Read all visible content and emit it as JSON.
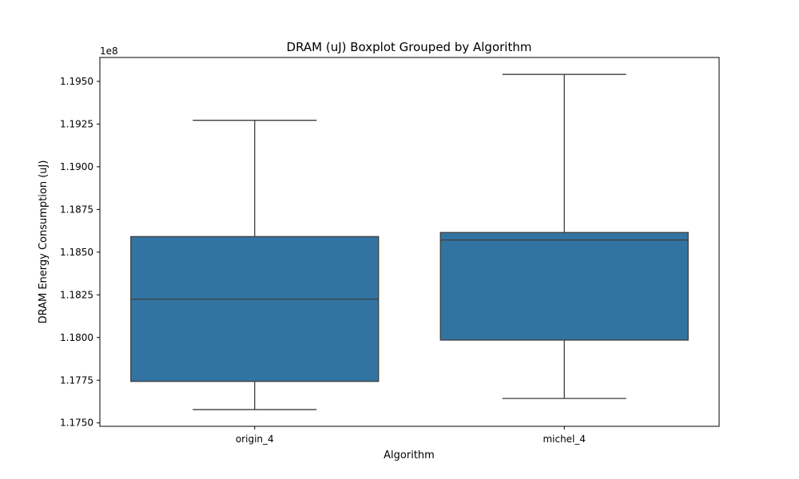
{
  "chart_data": {
    "type": "boxplot",
    "title": "DRAM (uJ) Boxplot Grouped by Algorithm",
    "xlabel": "Algorithm",
    "ylabel": "DRAM Energy Consumption (uJ)",
    "y_offset_label": "1e8",
    "ylim": [
      1.1748,
      1.1964
    ],
    "yticks": [
      1.175,
      1.1775,
      1.18,
      1.1825,
      1.185,
      1.1875,
      1.19,
      1.1925,
      1.195
    ],
    "ytick_labels": [
      "1.1750",
      "1.1775",
      "1.1800",
      "1.1825",
      "1.1850",
      "1.1875",
      "1.1900",
      "1.1925",
      "1.1950"
    ],
    "categories": [
      "origin_4",
      "michel_4"
    ],
    "boxes": [
      {
        "category": "origin_4",
        "whisker_low": 1.17578,
        "q1": 1.17743,
        "median": 1.18224,
        "q3": 1.18591,
        "whisker_high": 1.19272
      },
      {
        "category": "michel_4",
        "whisker_low": 1.17643,
        "q1": 1.17985,
        "median": 1.18571,
        "q3": 1.18615,
        "whisker_high": 1.19541
      }
    ],
    "box_color": "#3274a1",
    "line_color": "#3d3d3d",
    "grid": false,
    "legend": "none"
  }
}
